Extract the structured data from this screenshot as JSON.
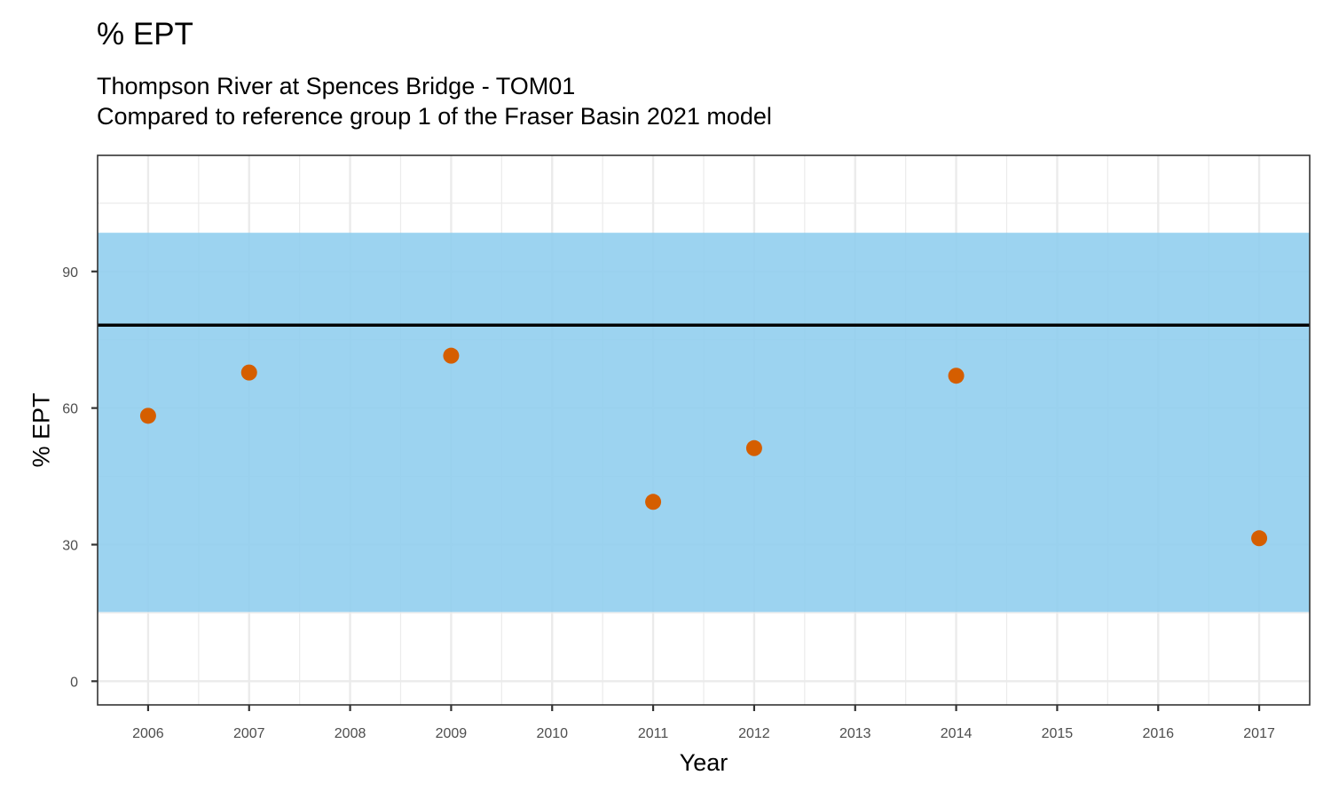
{
  "title": "% EPT",
  "subtitle": {
    "line1": "Thompson River at Spences Bridge - TOM01",
    "line2": "Compared to reference group 1 of the Fraser Basin 2021 model"
  },
  "colors": {
    "band": "#8ecdee",
    "points": "#d55e00",
    "reference_line": "#000000",
    "grid": "#ebebeb"
  },
  "chart_data": {
    "type": "scatter",
    "title": "% EPT",
    "xlabel": "Year",
    "ylabel": "% EPT",
    "x_ticks": [
      2006,
      2007,
      2008,
      2009,
      2010,
      2011,
      2012,
      2013,
      2014,
      2015,
      2016,
      2017
    ],
    "y_ticks": [
      0,
      30,
      60,
      90
    ],
    "xlim": [
      2005.5,
      2017.5
    ],
    "ylim": [
      -5.2,
      115.5
    ],
    "grid": true,
    "reference_band": {
      "lower": 15.2,
      "upper": 98.5
    },
    "reference_line": 78.2,
    "points": [
      {
        "x": 2006,
        "y": 58.3
      },
      {
        "x": 2007,
        "y": 67.8
      },
      {
        "x": 2009,
        "y": 71.5
      },
      {
        "x": 2011,
        "y": 39.4
      },
      {
        "x": 2012,
        "y": 51.2
      },
      {
        "x": 2014,
        "y": 67.1
      },
      {
        "x": 2017,
        "y": 31.4
      }
    ]
  }
}
